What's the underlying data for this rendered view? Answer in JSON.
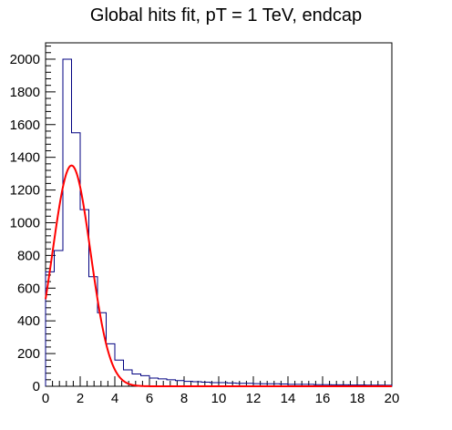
{
  "chart_data": {
    "type": "histogram",
    "title": "Global hits fit, pT = 1 TeV, endcap",
    "xlabel": "",
    "ylabel": "",
    "xlim": [
      0,
      20
    ],
    "ylim": [
      0,
      2100
    ],
    "grid": false,
    "legend": "none",
    "x_ticks": [
      0,
      2,
      4,
      6,
      8,
      10,
      12,
      14,
      16,
      18,
      20
    ],
    "x_tick_labels": [
      "0",
      "2",
      "4",
      "6",
      "8",
      "10",
      "12",
      "14",
      "16",
      "18",
      "20"
    ],
    "y_ticks": [
      0,
      200,
      400,
      600,
      800,
      1000,
      1200,
      1400,
      1600,
      1800,
      2000
    ],
    "y_tick_labels": [
      "0",
      "200",
      "400",
      "600",
      "800",
      "1000",
      "1200",
      "1400",
      "1600",
      "1800",
      "2000"
    ],
    "bin_width": 0.5,
    "series": [
      {
        "kind": "histogram",
        "color": "#000080",
        "bin_edges_start": 0,
        "values": [
          700,
          830,
          2000,
          1550,
          1080,
          670,
          450,
          260,
          160,
          100,
          75,
          65,
          50,
          45,
          40,
          35,
          30,
          28,
          25,
          22,
          22,
          20,
          18,
          18,
          16,
          15,
          15,
          14,
          12,
          12,
          12,
          10,
          10,
          9,
          9,
          8,
          8,
          7,
          7,
          6
        ]
      },
      {
        "kind": "gaussian-fit",
        "color": "#ff0000",
        "amplitude": 1350,
        "mean": 1.5,
        "sigma": 1.1,
        "x_range": [
          0,
          20
        ]
      }
    ]
  }
}
